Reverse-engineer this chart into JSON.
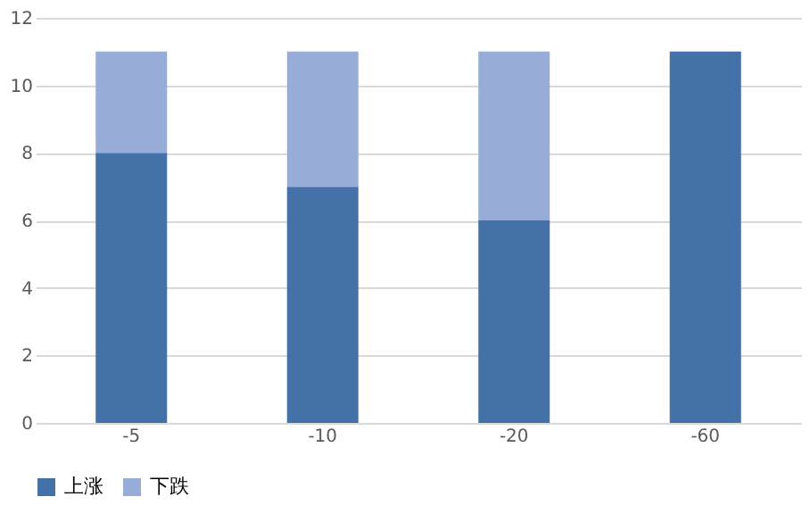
{
  "chart_data": {
    "type": "bar",
    "stacked": true,
    "categories": [
      "-5",
      "-10",
      "-20",
      "-60"
    ],
    "series": [
      {
        "name": "上涨",
        "color": "#4472a8",
        "values": [
          8,
          7,
          6,
          11
        ]
      },
      {
        "name": "下跌",
        "color": "#97acd6",
        "values": [
          3,
          4,
          5,
          0
        ]
      }
    ],
    "ylim": [
      0,
      12
    ],
    "yticks": [
      0,
      2,
      4,
      6,
      8,
      10,
      12
    ],
    "grid": "y",
    "legend": "bottom"
  }
}
